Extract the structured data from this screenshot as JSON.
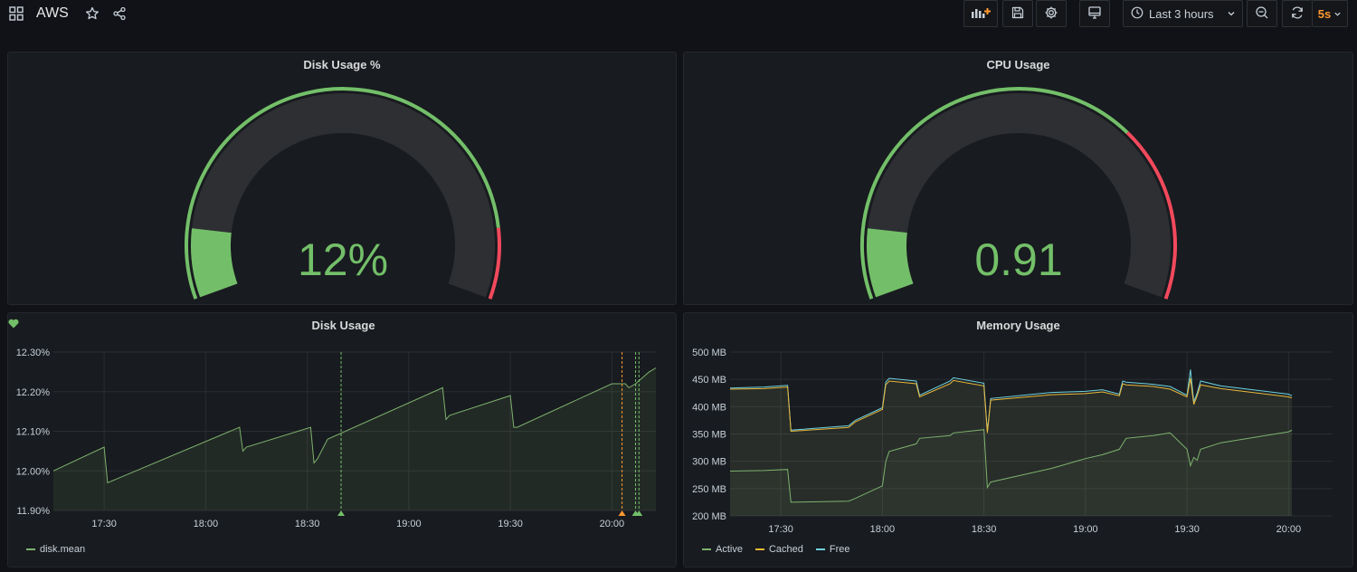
{
  "dashboard": {
    "title": "AWS"
  },
  "toolbar": {
    "time_range": "Last 3 hours",
    "refresh_interval": "5s"
  },
  "colors": {
    "green": "#73bf69",
    "red": "#f2495c",
    "orange": "#ff9830",
    "active": "#7eb26d",
    "cached": "#eab839",
    "free": "#6ed0e0",
    "background": "#111217",
    "panel": "#181b1f"
  },
  "panels": {
    "disk_gauge": {
      "title": "Disk Usage %",
      "value": "12%",
      "percent": 12,
      "threshold_red_start": 88
    },
    "cpu_gauge": {
      "title": "CPU Usage",
      "value": "0.91",
      "percent": 12,
      "threshold_red_start": 70
    },
    "disk_usage": {
      "title": "Disk Usage",
      "legend": [
        "disk.mean"
      ]
    },
    "memory_usage": {
      "title": "Memory Usage",
      "legend": [
        "Active",
        "Cached",
        "Free"
      ]
    }
  },
  "chart_data": [
    {
      "type": "line",
      "title": "Disk Usage",
      "x_ticks": [
        "17:30",
        "18:00",
        "18:30",
        "19:00",
        "19:30",
        "20:00"
      ],
      "y_ticks": [
        "12.30%",
        "12.20%",
        "12.10%",
        "12.00%",
        "11.90%"
      ],
      "ylim": [
        11.9,
        12.3
      ],
      "series": [
        {
          "name": "disk.mean",
          "color": "#7eb26d",
          "x": [
            "17:15",
            "17:30",
            "17:31",
            "18:10",
            "18:11",
            "18:12",
            "18:31",
            "18:32",
            "18:33",
            "18:36",
            "19:10",
            "19:11",
            "19:12",
            "19:30",
            "19:31",
            "19:32",
            "20:00",
            "20:01",
            "20:04",
            "20:05",
            "20:07",
            "20:11",
            "20:13"
          ],
          "y": [
            12.0,
            12.06,
            11.97,
            12.11,
            12.05,
            12.06,
            12.11,
            12.02,
            12.03,
            12.08,
            12.21,
            12.13,
            12.14,
            12.19,
            12.11,
            12.11,
            12.22,
            12.22,
            12.22,
            12.21,
            12.22,
            12.25,
            12.26
          ]
        }
      ],
      "annotations": [
        {
          "time": "18:40",
          "color": "#73bf69"
        },
        {
          "time": "20:03",
          "color": "#ff9830"
        },
        {
          "time": "20:07",
          "color": "#73bf69"
        },
        {
          "time": "20:08",
          "color": "#73bf69"
        }
      ],
      "grid": true,
      "legend": "bottom-left"
    },
    {
      "type": "area",
      "title": "Memory Usage",
      "x_ticks": [
        "17:30",
        "18:00",
        "18:30",
        "19:00",
        "19:30",
        "20:00"
      ],
      "y_ticks": [
        "500 MB",
        "450 MB",
        "400 MB",
        "350 MB",
        "300 MB",
        "250 MB",
        "200 MB"
      ],
      "ylim": [
        200,
        500
      ],
      "x": [
        "17:15",
        "17:25",
        "17:32",
        "17:33",
        "17:50",
        "17:52",
        "18:00",
        "18:01",
        "18:02",
        "18:10",
        "18:11",
        "18:20",
        "18:21",
        "18:30",
        "18:31",
        "18:32",
        "18:50",
        "19:00",
        "19:05",
        "19:10",
        "19:11",
        "19:12",
        "19:20",
        "19:25",
        "19:30",
        "19:31",
        "19:32",
        "19:33",
        "19:34",
        "19:40",
        "20:00",
        "20:01"
      ],
      "series": [
        {
          "name": "Active",
          "color": "#7eb26d",
          "values": [
            282,
            283,
            285,
            225,
            227,
            232,
            255,
            300,
            318,
            332,
            342,
            347,
            352,
            358,
            252,
            262,
            287,
            305,
            312,
            322,
            332,
            342,
            347,
            352,
            322,
            292,
            307,
            302,
            322,
            334,
            354,
            357
          ]
        },
        {
          "name": "Cached",
          "color": "#eab839",
          "values": [
            432,
            433,
            436,
            355,
            362,
            372,
            395,
            440,
            447,
            442,
            418,
            442,
            448,
            438,
            352,
            412,
            422,
            424,
            427,
            420,
            442,
            440,
            437,
            432,
            418,
            452,
            404,
            420,
            440,
            433,
            418,
            416
          ]
        },
        {
          "name": "Free",
          "color": "#6ed0e0",
          "values": [
            434,
            436,
            439,
            357,
            365,
            375,
            398,
            445,
            452,
            447,
            421,
            447,
            453,
            443,
            355,
            415,
            426,
            428,
            431,
            423,
            447,
            445,
            441,
            437,
            421,
            468,
            409,
            425,
            447,
            438,
            423,
            420
          ]
        }
      ],
      "grid": true,
      "legend": "bottom-left"
    }
  ]
}
